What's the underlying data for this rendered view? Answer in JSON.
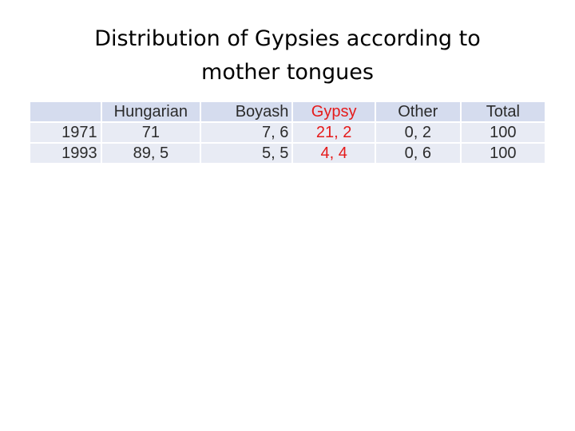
{
  "slide": {
    "title_line1": "Distribution of Gypsies according to",
    "title_line2": "mother tongues"
  },
  "table": {
    "headers": [
      "",
      "Hungarian",
      "Boyash",
      "Gypsy",
      "Other",
      "Total"
    ],
    "rows": [
      [
        "1971",
        "71",
        "7, 6",
        "21, 2",
        "0, 2",
        "100"
      ],
      [
        "1993",
        "89, 5",
        "5, 5",
        "4, 4",
        "0, 6",
        "100"
      ]
    ]
  },
  "colors": {
    "gypsy_text": "#e51a1a",
    "header_fill": "#d5dcee",
    "row_fill": "#e8ebf4"
  }
}
